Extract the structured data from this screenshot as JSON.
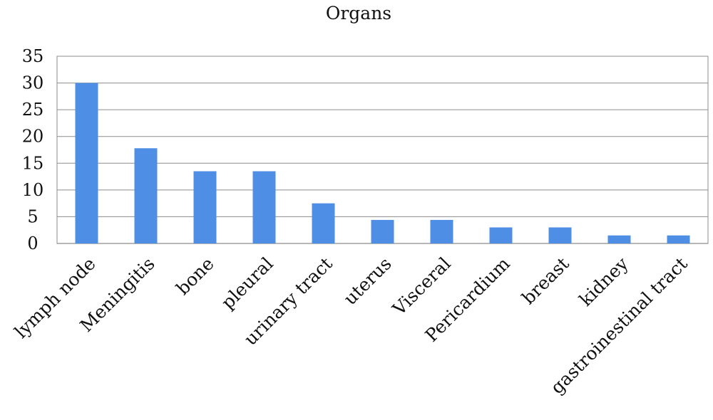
{
  "chart_data": {
    "type": "bar",
    "title": "Organs",
    "xlabel": "",
    "ylabel": "",
    "categories": [
      "lymph node",
      "Meningitis",
      "bone",
      "pleural",
      "urinary tract",
      "uterus",
      "Visceral",
      "Pericardium",
      "breast",
      "kidney",
      "gastroinestinal tract"
    ],
    "values": [
      30,
      17.8,
      13.5,
      13.5,
      7.5,
      4.4,
      4.4,
      3,
      3,
      1.5,
      1.5
    ],
    "ylim": [
      0,
      35
    ],
    "yticks": [
      0,
      5,
      10,
      15,
      20,
      25,
      30,
      35
    ],
    "grid": true,
    "legend": "none",
    "bar_color": "#4f8ee5"
  }
}
